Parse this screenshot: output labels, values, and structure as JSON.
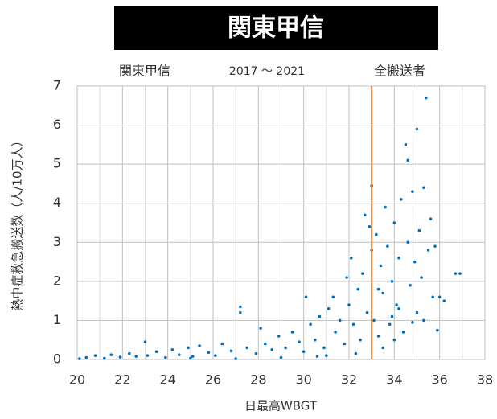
{
  "chart_data": {
    "type": "scatter",
    "title": "関東甲信",
    "region": "関東甲信",
    "period": "2017 ～ 2021",
    "group": "全搬送者",
    "x_label": "日最高WBGT",
    "y_label": "熱中症救急搬送数（人/10万人）",
    "color": "#0070c0",
    "vline": 33,
    "vline_color": "#ed7d31",
    "grid": true,
    "xlim": [
      20,
      38
    ],
    "xticks": [
      20,
      22,
      24,
      26,
      28,
      30,
      32,
      34,
      36,
      38
    ],
    "ylim": [
      0,
      7
    ],
    "yticks": [
      0,
      1,
      2,
      3,
      4,
      5,
      6,
      7
    ],
    "x": [
      20.1,
      20.4,
      20.8,
      21.2,
      21.5,
      21.9,
      22.3,
      22.6,
      23.0,
      23.1,
      23.5,
      23.9,
      24.2,
      24.5,
      24.9,
      25.1,
      25.4,
      25.8,
      26.1,
      26.4,
      26.8,
      27.2,
      27.2,
      27.5,
      27.9,
      28.1,
      28.3,
      28.6,
      28.9,
      29.2,
      29.5,
      29.8,
      30.0,
      30.1,
      30.3,
      30.5,
      30.7,
      30.9,
      31.1,
      31.3,
      31.4,
      31.6,
      31.8,
      31.9,
      32.0,
      32.1,
      32.2,
      32.4,
      32.5,
      32.6,
      32.7,
      32.8,
      32.9,
      33.0,
      33.0,
      33.1,
      33.2,
      33.3,
      33.4,
      33.5,
      33.6,
      33.7,
      33.8,
      33.9,
      34.0,
      34.1,
      34.2,
      34.3,
      34.4,
      34.5,
      34.6,
      34.6,
      34.7,
      34.8,
      34.9,
      35.0,
      35.0,
      35.1,
      35.2,
      35.3,
      35.4,
      35.5,
      35.6,
      35.7,
      35.8,
      35.9,
      36.0,
      36.2,
      36.7,
      36.9,
      33.5,
      34.0,
      31.0,
      29.0,
      27.0,
      25.0,
      34.8,
      32.3,
      30.6,
      33.9,
      35.3,
      34.2,
      33.3
    ],
    "values": [
      0.02,
      0.05,
      0.1,
      0.03,
      0.12,
      0.06,
      0.15,
      0.08,
      0.45,
      0.1,
      0.2,
      0.05,
      0.25,
      0.12,
      0.3,
      0.08,
      0.35,
      0.18,
      0.1,
      0.4,
      0.22,
      1.35,
      1.2,
      0.3,
      0.15,
      0.8,
      0.4,
      0.25,
      0.6,
      0.3,
      0.7,
      0.45,
      0.2,
      1.6,
      0.9,
      0.5,
      1.1,
      0.3,
      1.3,
      1.6,
      0.7,
      1.0,
      0.4,
      2.1,
      1.4,
      2.6,
      0.9,
      1.8,
      0.5,
      2.2,
      3.7,
      1.2,
      3.4,
      4.45,
      2.8,
      1.0,
      3.2,
      0.6,
      2.4,
      1.7,
      3.9,
      2.9,
      0.9,
      2.0,
      3.5,
      1.4,
      2.6,
      4.1,
      0.7,
      5.5,
      5.1,
      3.0,
      1.9,
      4.3,
      2.5,
      5.9,
      1.2,
      3.3,
      2.1,
      4.4,
      6.7,
      2.8,
      3.6,
      1.6,
      2.9,
      0.75,
      1.6,
      1.5,
      2.2,
      2.2,
      0.3,
      0.5,
      0.1,
      0.05,
      0.02,
      0.03,
      0.95,
      0.15,
      0.08,
      1.1,
      1.0,
      1.3,
      1.8
    ]
  }
}
